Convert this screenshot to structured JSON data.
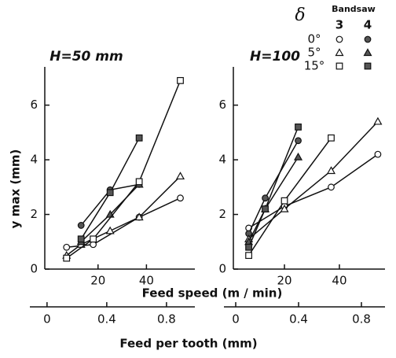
{
  "xlabel": "Feed speed (m / min)",
  "x2label": "Feed per tooth (mm)",
  "ylabel": "y max (mm)",
  "legend": {
    "title": "δ",
    "header": "Bandsaw",
    "columns": [
      "3",
      "4"
    ],
    "rows": [
      "0°",
      "5°",
      "15°"
    ]
  },
  "chart_data": [
    {
      "type": "line",
      "title": "H=50 mm",
      "xlim": [
        -2,
        60
      ],
      "xticks": [
        20,
        40
      ],
      "ylim": [
        0,
        7.4
      ],
      "yticks": [
        0,
        2,
        4,
        6
      ],
      "x2lim": [
        -0.115,
        0.99
      ],
      "x2ticks": [
        0,
        0.4,
        0.8
      ],
      "series": [
        {
          "marker": "circle",
          "filled": false,
          "x": [
            7,
            18,
            37,
            54
          ],
          "values": [
            0.8,
            0.9,
            1.9,
            2.6
          ]
        },
        {
          "marker": "circle",
          "filled": true,
          "x": [
            13,
            25,
            37
          ],
          "values": [
            1.6,
            2.9,
            3.1
          ]
        },
        {
          "marker": "triangle",
          "filled": false,
          "x": [
            7,
            13,
            25,
            37,
            54
          ],
          "values": [
            0.5,
            0.9,
            1.4,
            1.9,
            3.4
          ]
        },
        {
          "marker": "triangle",
          "filled": true,
          "x": [
            13,
            25,
            37
          ],
          "values": [
            1.0,
            2.0,
            3.1
          ]
        },
        {
          "marker": "square",
          "filled": false,
          "x": [
            7,
            18,
            37,
            54
          ],
          "values": [
            0.4,
            1.1,
            3.2,
            6.9
          ]
        },
        {
          "marker": "square",
          "filled": true,
          "x": [
            13,
            25,
            37
          ],
          "values": [
            1.1,
            2.8,
            4.8
          ]
        }
      ]
    },
    {
      "type": "line",
      "title": "H=100",
      "xlim": [
        1.4,
        56.6
      ],
      "xticks": [
        20,
        40
      ],
      "ylim": [
        0,
        7.4
      ],
      "yticks": [
        0,
        2,
        4,
        6
      ],
      "x2lim": [
        -0.075,
        0.95
      ],
      "x2ticks": [
        0,
        0.4,
        0.8
      ],
      "series": [
        {
          "marker": "circle",
          "filled": false,
          "x": [
            7,
            20,
            37,
            54
          ],
          "values": [
            1.5,
            2.3,
            3.0,
            4.2
          ]
        },
        {
          "marker": "circle",
          "filled": true,
          "x": [
            7,
            13,
            25
          ],
          "values": [
            1.3,
            2.6,
            4.7
          ]
        },
        {
          "marker": "triangle",
          "filled": false,
          "x": [
            7,
            20,
            37,
            54
          ],
          "values": [
            1.1,
            2.2,
            3.6,
            5.4
          ]
        },
        {
          "marker": "triangle",
          "filled": true,
          "x": [
            7,
            13,
            25
          ],
          "values": [
            1.0,
            2.2,
            4.1
          ]
        },
        {
          "marker": "square",
          "filled": false,
          "x": [
            7,
            20,
            37
          ],
          "values": [
            0.5,
            2.5,
            4.8
          ]
        },
        {
          "marker": "square",
          "filled": true,
          "x": [
            7,
            13,
            25
          ],
          "values": [
            0.8,
            2.2,
            5.2
          ]
        }
      ]
    }
  ]
}
